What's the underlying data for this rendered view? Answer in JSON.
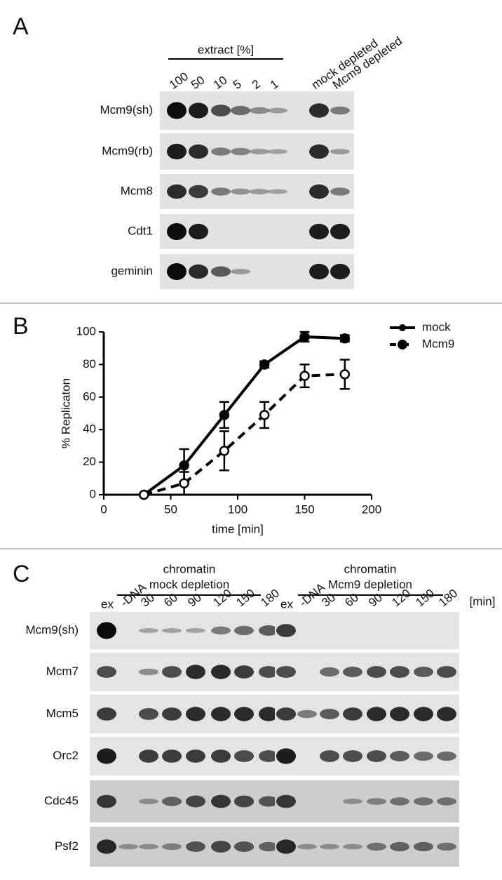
{
  "panel_a": {
    "label": "A",
    "group_label": "extract [%]",
    "lanes": [
      "100",
      "50",
      "10",
      "5",
      "2",
      "1",
      "mock depleted",
      "Mcm9 depleted"
    ],
    "rows": [
      "Mcm9(sh)",
      "Mcm9(rb)",
      "Mcm8",
      "Cdt1",
      "geminin"
    ]
  },
  "panel_b": {
    "label": "B"
  },
  "chart_data": {
    "type": "line",
    "xlabel": "time [min]",
    "ylabel": "% Replicaton",
    "x": [
      30,
      60,
      90,
      120,
      150,
      180
    ],
    "xlim": [
      0,
      200
    ],
    "xticks": [
      0,
      50,
      100,
      150,
      200
    ],
    "ylim": [
      0,
      100
    ],
    "yticks": [
      0,
      20,
      40,
      60,
      80,
      100
    ],
    "legend": "upper right",
    "series": [
      {
        "name": "mock",
        "color": "#000000",
        "style": "solid",
        "marker": "filled",
        "values": [
          0,
          18,
          49,
          80,
          97,
          96
        ],
        "errors": [
          0,
          10,
          8,
          2,
          3,
          2
        ]
      },
      {
        "name": "Mcm9",
        "color": "#000000",
        "style": "dashed",
        "marker": "open",
        "values": [
          0,
          7,
          27,
          49,
          73,
          74
        ],
        "errors": [
          0,
          7,
          12,
          8,
          7,
          9
        ]
      }
    ]
  },
  "panel_c": {
    "label": "C",
    "groups": [
      {
        "title": "chromatin",
        "subtitle": "mock depletion"
      },
      {
        "title": "chromatin",
        "subtitle": "Mcm9 depletion"
      }
    ],
    "lanes": [
      "ex",
      "-DNA",
      "30",
      "60",
      "90",
      "120",
      "150",
      "180",
      "ex",
      "-DNA",
      "30",
      "60",
      "90",
      "120",
      "150",
      "180"
    ],
    "unit": "[min]",
    "rows": [
      "Mcm9(sh)",
      "Mcm7",
      "Mcm5",
      "Orc2",
      "Cdc45",
      "Psf2"
    ]
  }
}
